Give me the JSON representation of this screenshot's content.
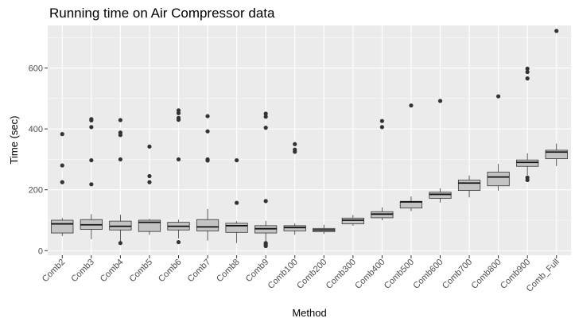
{
  "chart_data": {
    "type": "box",
    "title": "Running time on Air Compressor data",
    "xlabel": "Method",
    "ylabel": "Time (sec)",
    "ylim": [
      -15,
      740
    ],
    "yticks": [
      0,
      200,
      400,
      600
    ],
    "y_minor_ticks": [
      100,
      300,
      500,
      700
    ],
    "grid": true,
    "legend": "none",
    "colors": {
      "panel": "#ebebeb",
      "grid": "#ffffff",
      "box_fill": "#c4c4c4",
      "box_stroke": "#333333",
      "outlier": "#333333"
    },
    "categories": [
      "Comb2",
      "Comb3",
      "Comb4",
      "Comb5",
      "Comb6",
      "Comb7",
      "Comb8",
      "Comb9",
      "Comb100",
      "Comb200",
      "Comb300",
      "Comb400",
      "Comb500",
      "Comb600",
      "Comb700",
      "Comb800",
      "Comb900",
      "Comb_Full"
    ],
    "boxes": [
      {
        "min": 48,
        "q1": 58,
        "median": 88,
        "q3": 100,
        "max": 107,
        "outliers": [
          383,
          280,
          225
        ]
      },
      {
        "min": 38,
        "q1": 70,
        "median": 85,
        "q3": 102,
        "max": 120,
        "outliers": [
          432,
          428,
          406,
          297,
          218
        ]
      },
      {
        "min": 25,
        "q1": 68,
        "median": 80,
        "q3": 97,
        "max": 118,
        "outliers": [
          429,
          388,
          380,
          300,
          25
        ]
      },
      {
        "min": 52,
        "q1": 63,
        "median": 93,
        "q3": 100,
        "max": 104,
        "outliers": [
          342,
          245,
          225
        ]
      },
      {
        "min": 40,
        "q1": 68,
        "median": 80,
        "q3": 93,
        "max": 102,
        "outliers": [
          461,
          452,
          436,
          430,
          300,
          28
        ]
      },
      {
        "min": 33,
        "q1": 65,
        "median": 78,
        "q3": 102,
        "max": 137,
        "outliers": [
          442,
          392,
          300,
          296
        ]
      },
      {
        "min": 25,
        "q1": 60,
        "median": 82,
        "q3": 90,
        "max": 97,
        "outliers": [
          297,
          157
        ]
      },
      {
        "min": 28,
        "q1": 58,
        "median": 72,
        "q3": 82,
        "max": 98,
        "outliers": [
          450,
          440,
          404,
          163,
          25,
          20,
          15
        ]
      },
      {
        "min": 52,
        "q1": 65,
        "median": 76,
        "q3": 82,
        "max": 90,
        "outliers": [
          350,
          332,
          325
        ]
      },
      {
        "min": 55,
        "q1": 62,
        "median": 68,
        "q3": 73,
        "max": 85,
        "outliers": []
      },
      {
        "min": 82,
        "q1": 88,
        "median": 100,
        "q3": 107,
        "max": 117,
        "outliers": []
      },
      {
        "min": 100,
        "q1": 108,
        "median": 120,
        "q3": 128,
        "max": 142,
        "outliers": [
          426,
          406
        ]
      },
      {
        "min": 130,
        "q1": 140,
        "median": 160,
        "q3": 162,
        "max": 178,
        "outliers": [
          477
        ]
      },
      {
        "min": 158,
        "q1": 172,
        "median": 185,
        "q3": 192,
        "max": 205,
        "outliers": [
          492
        ]
      },
      {
        "min": 175,
        "q1": 198,
        "median": 222,
        "q3": 232,
        "max": 247,
        "outliers": []
      },
      {
        "min": 197,
        "q1": 213,
        "median": 242,
        "q3": 258,
        "max": 285,
        "outliers": [
          507
        ]
      },
      {
        "min": 248,
        "q1": 277,
        "median": 290,
        "q3": 298,
        "max": 320,
        "outliers": [
          598,
          587,
          566,
          240,
          232
        ]
      },
      {
        "min": 278,
        "q1": 302,
        "median": 324,
        "q3": 330,
        "max": 352,
        "outliers": [
          722
        ]
      }
    ]
  }
}
